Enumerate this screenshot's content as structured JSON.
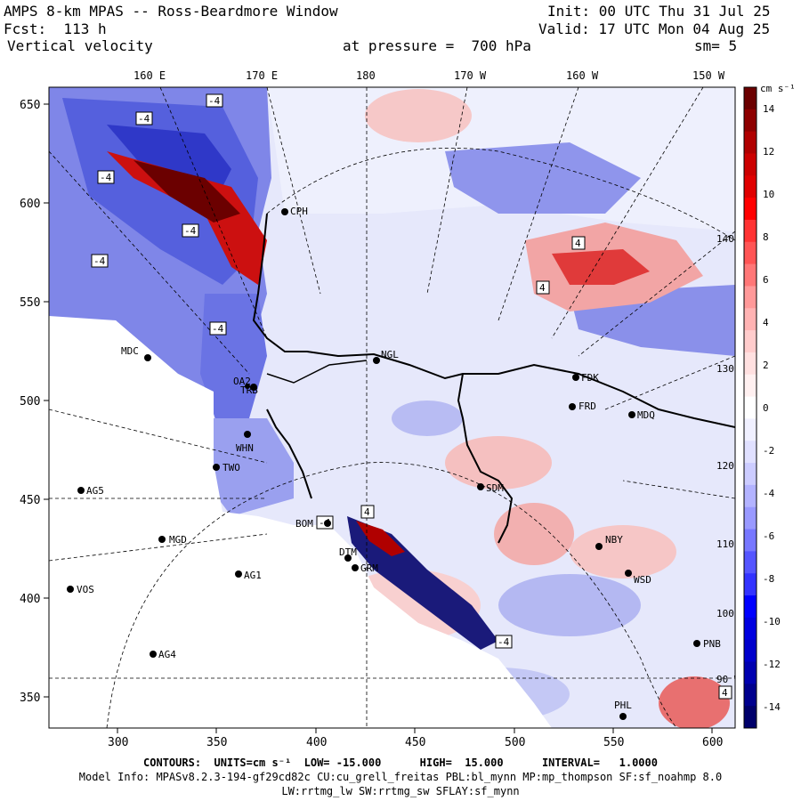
{
  "header": {
    "title": "AMPS 8-km MPAS -- Ross-Beardmore Window",
    "fcst": "Fcst:  113 h",
    "variable": "Vertical velocity",
    "init": "Init: 00 UTC Thu 31 Jul 25",
    "valid": "Valid: 17 UTC Mon 04 Aug 25",
    "pressure": "at pressure =  700 hPa",
    "smooth": "sm= 5"
  },
  "map": {
    "top_longitude_labels": [
      "160 E",
      "170 E",
      "180",
      "170 W",
      "160 W",
      "150 W"
    ],
    "right_longitude_labels": [
      "140 W",
      "130 W",
      "120 W",
      "110 W",
      "100 W",
      "90 W"
    ],
    "x_ticks": [
      "300",
      "350",
      "400",
      "450",
      "500",
      "550",
      "600"
    ],
    "y_ticks": [
      "650",
      "600",
      "550",
      "500",
      "450",
      "400",
      "350"
    ],
    "stations": [
      "MDC",
      "NGL",
      "FDK",
      "FRD",
      "MDQ",
      "WHN",
      "TWO",
      "AG5",
      "SDM",
      "NBY",
      "MGD",
      "BOM",
      "DTM",
      "GRM",
      "AG1",
      "WSD",
      "VOS",
      "AG4",
      "PHL",
      "PNB",
      "CPH",
      "OA2",
      "TRB"
    ],
    "contour_labels": [
      "-4",
      "-4",
      "-4",
      "-4",
      "-4",
      "-4",
      "4",
      "4",
      "4",
      "-4",
      "-4",
      "4"
    ]
  },
  "colorbar": {
    "unit": "cm s⁻¹",
    "labels": [
      "14",
      "12",
      "10",
      "8",
      "6",
      "4",
      "2",
      "0",
      "-2",
      "-4",
      "-6",
      "-8",
      "-10",
      "-12",
      "-14"
    ],
    "colors_top_to_bottom": [
      "#6b0000",
      "#8e0000",
      "#b00000",
      "#cc0000",
      "#e00000",
      "#ff0000",
      "#ff3333",
      "#ff5555",
      "#ff7777",
      "#ff9999",
      "#ffb3b3",
      "#ffcccc",
      "#ffe0e0",
      "#fff0f0",
      "#ffffff",
      "#f0f0ff",
      "#e0e0ff",
      "#ccccff",
      "#b3b3ff",
      "#9999ff",
      "#7777ff",
      "#5555ff",
      "#3333ff",
      "#0000ff",
      "#0000e0",
      "#0000cc",
      "#0000b0",
      "#00008e",
      "#00006b"
    ]
  },
  "footer": {
    "contours": "CONTOURS:  UNITS=cm s⁻¹  LOW= -15.000      HIGH=  15.000      INTERVAL=   1.0000",
    "model_info": "Model Info: MPASv8.2.3-194-gf29cd82c CU:cu_grell_freitas PBL:bl_mynn MP:mp_thompson SF:sf_noahmp 8.0",
    "model_info2": "LW:rrtmg_lw SW:rrtmg_sw SFLAY:sf_mynn"
  }
}
